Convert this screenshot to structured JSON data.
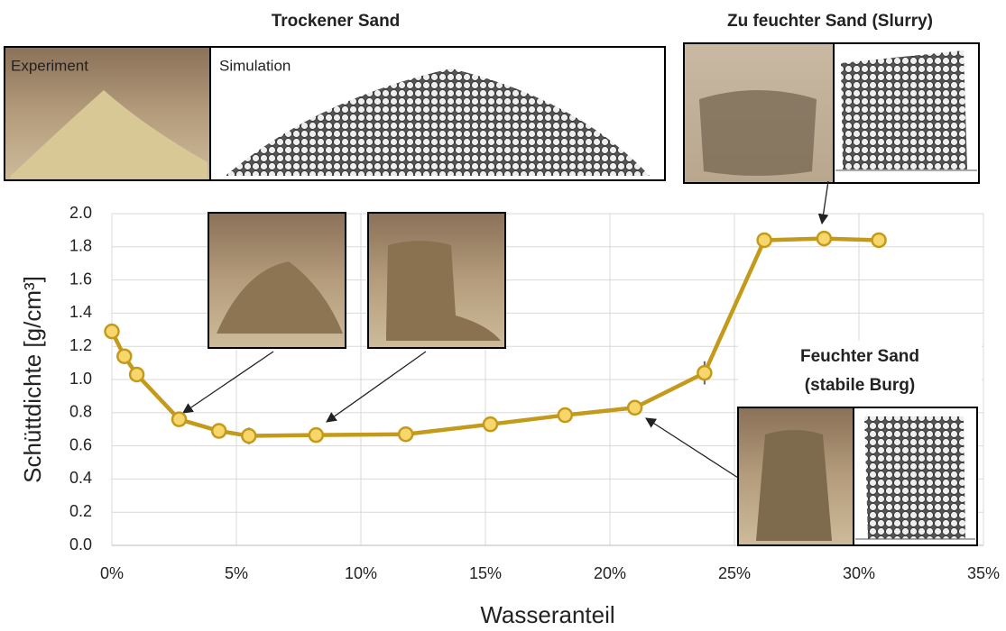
{
  "chart_data": {
    "type": "line",
    "y_label": "Schüttdichte [g/cm³]",
    "x_label": "Wasseranteil",
    "annotations": {
      "dry": "Trockener Sand",
      "experiment": "Experiment",
      "simulation": "Simulation",
      "slurry": "Zu feuchter Sand (Slurry)",
      "wet_1": "Feuchter Sand",
      "wet_2": "(stabile Burg)"
    },
    "x": [
      0,
      0.5,
      1.0,
      2.7,
      4.3,
      5.5,
      8.2,
      11.8,
      15.2,
      18.2,
      21.0,
      23.8,
      26.2,
      28.6,
      30.8
    ],
    "values": [
      1.29,
      1.14,
      1.03,
      0.76,
      0.69,
      0.66,
      0.665,
      0.67,
      0.73,
      0.785,
      0.83,
      1.04,
      1.84,
      1.85,
      1.84
    ],
    "errors": [
      0.01,
      0.01,
      0.01,
      0.01,
      0.01,
      0.05,
      0.01,
      0.01,
      0.01,
      0.03,
      0.01,
      0.07,
      0.01,
      0.01,
      0.01
    ],
    "color": "#c49a1a",
    "marker_fill": "#f7d66b",
    "xlim": [
      0,
      35
    ],
    "xticks": [
      {
        "value": 0,
        "label": "0%"
      },
      {
        "value": 5,
        "label": "5%"
      },
      {
        "value": 10,
        "label": "10%"
      },
      {
        "value": 15,
        "label": "15%"
      },
      {
        "value": 20,
        "label": "20%"
      },
      {
        "value": 25,
        "label": "25%"
      },
      {
        "value": 30,
        "label": "30%"
      },
      {
        "value": 35,
        "label": "35%"
      }
    ],
    "ylim": [
      0,
      2
    ],
    "yticks": [
      {
        "value": 0,
        "label": "0.0"
      },
      0.2,
      0.4,
      0.6,
      0.8,
      {
        "value": 1,
        "label": "1.0"
      },
      1.2,
      1.4,
      1.6,
      1.8,
      {
        "value": 2,
        "label": "2.0"
      }
    ],
    "grid": true
  }
}
